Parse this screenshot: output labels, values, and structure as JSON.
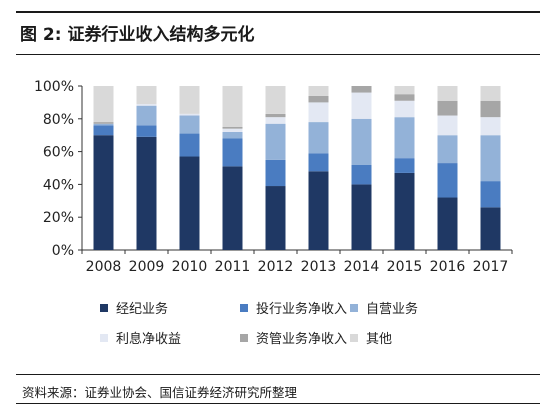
{
  "header": {
    "title": "图 2:  证券行业收入结构多元化"
  },
  "footer": {
    "source": "资料来源：证券业协会、国信证券经济研究所整理"
  },
  "chart_data": {
    "type": "bar",
    "stacked": true,
    "categories": [
      "2008",
      "2009",
      "2010",
      "2011",
      "2012",
      "2013",
      "2014",
      "2015",
      "2016",
      "2017"
    ],
    "ylim": [
      0,
      100
    ],
    "yticks": [
      "0%",
      "20%",
      "40%",
      "60%",
      "80%",
      "100%"
    ],
    "ytick_values": [
      0,
      20,
      40,
      60,
      80,
      100
    ],
    "grid": false,
    "legend_position": "bottom",
    "series": [
      {
        "name": "经纪业务",
        "color": "#1f3864",
        "values": [
          70,
          69,
          57,
          51,
          39,
          48,
          40,
          47,
          32,
          26
        ]
      },
      {
        "name": "投行业务净收入",
        "color": "#4a7cc1",
        "values": [
          6,
          7,
          14,
          17,
          16,
          11,
          12,
          9,
          21,
          16
        ]
      },
      {
        "name": "自营业务",
        "color": "#93b2d8",
        "values": [
          1,
          12,
          11,
          4,
          22,
          19,
          28,
          25,
          17,
          28
        ]
      },
      {
        "name": "利息净收益",
        "color": "#e3e8f3",
        "values": [
          0,
          1,
          1,
          2,
          4,
          12,
          16,
          10,
          12,
          11
        ]
      },
      {
        "name": "资管业务净收入",
        "color": "#a6a6a6",
        "values": [
          1,
          0,
          0,
          1,
          2,
          4,
          4,
          4,
          9,
          10
        ]
      },
      {
        "name": "其他",
        "color": "#d9d9d9",
        "values": [
          22,
          11,
          17,
          25,
          17,
          6,
          0,
          5,
          9,
          9
        ]
      }
    ]
  }
}
